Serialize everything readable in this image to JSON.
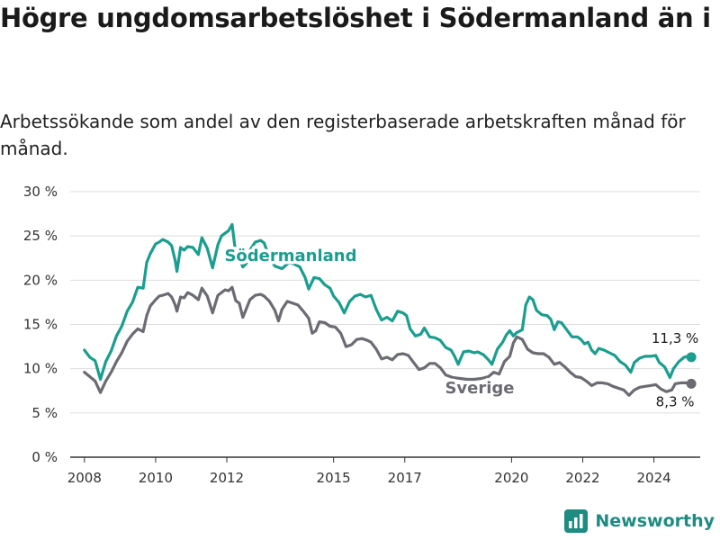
{
  "title": "Högre ungdomsarbetslöshet i Södermanland än i Sverige",
  "subtitle": "Arbetssökande som andel av den registerbaserade arbetskraften månad för månad.",
  "brand": {
    "name": "Newsworthy"
  },
  "colors": {
    "sodermanland": "#1a9e8f",
    "sverige": "#6b6b73",
    "grid": "#dddddd",
    "axis": "#333333",
    "brand": "#1e8c82"
  },
  "chart_data": {
    "type": "line",
    "title": "Högre ungdomsarbetslöshet i Södermanland än i Sverige",
    "subtitle": "Arbetssökande som andel av den registerbaserade arbetskraften månad för månad.",
    "xlabel": "",
    "ylabel": "",
    "xlim": [
      2007.6,
      2025.3
    ],
    "ylim": [
      0,
      30
    ],
    "y_ticks": [
      0,
      5,
      10,
      15,
      20,
      25,
      30
    ],
    "y_tick_labels": [
      "0 %",
      "5 %",
      "10 %",
      "15 %",
      "20 %",
      "25 %",
      "30 %"
    ],
    "x_ticks": [
      2008,
      2010,
      2012,
      2015,
      2017,
      2020,
      2022,
      2024
    ],
    "x_tick_labels": [
      "2008",
      "2010",
      "2012",
      "2015",
      "2017",
      "2020",
      "2022",
      "2024"
    ],
    "grid": true,
    "series": [
      {
        "name": "Södermanland",
        "color": "#1a9e8f",
        "end_label": "11,3 %",
        "points": [
          [
            2008.0,
            12.1
          ],
          [
            2008.15,
            11.3
          ],
          [
            2008.3,
            10.9
          ],
          [
            2008.45,
            8.8
          ],
          [
            2008.6,
            10.8
          ],
          [
            2008.75,
            12.0
          ],
          [
            2008.9,
            13.7
          ],
          [
            2009.05,
            14.8
          ],
          [
            2009.2,
            16.5
          ],
          [
            2009.35,
            17.5
          ],
          [
            2009.5,
            19.2
          ],
          [
            2009.65,
            19.1
          ],
          [
            2009.75,
            22.0
          ],
          [
            2009.85,
            23.0
          ],
          [
            2010.0,
            24.1
          ],
          [
            2010.1,
            24.3
          ],
          [
            2010.2,
            24.6
          ],
          [
            2010.35,
            24.3
          ],
          [
            2010.45,
            23.9
          ],
          [
            2010.55,
            22.2
          ],
          [
            2010.6,
            21.0
          ],
          [
            2010.7,
            23.7
          ],
          [
            2010.8,
            23.4
          ],
          [
            2010.9,
            23.8
          ],
          [
            2011.05,
            23.7
          ],
          [
            2011.2,
            22.9
          ],
          [
            2011.3,
            24.8
          ],
          [
            2011.45,
            23.6
          ],
          [
            2011.6,
            21.4
          ],
          [
            2011.75,
            24.0
          ],
          [
            2011.85,
            25.0
          ],
          [
            2011.95,
            25.3
          ],
          [
            2012.05,
            25.6
          ],
          [
            2012.15,
            26.3
          ],
          [
            2012.25,
            23.0
          ],
          [
            2012.35,
            22.6
          ],
          [
            2012.45,
            21.5
          ],
          [
            2012.55,
            21.9
          ],
          [
            2012.65,
            23.4
          ],
          [
            2012.8,
            24.3
          ],
          [
            2012.95,
            24.5
          ],
          [
            2013.05,
            24.2
          ],
          [
            2013.2,
            22.5
          ],
          [
            2013.35,
            21.6
          ],
          [
            2013.55,
            21.3
          ],
          [
            2013.75,
            22.0
          ],
          [
            2013.9,
            21.8
          ],
          [
            2014.05,
            21.5
          ],
          [
            2014.2,
            20.3
          ],
          [
            2014.3,
            19.0
          ],
          [
            2014.45,
            20.3
          ],
          [
            2014.6,
            20.2
          ],
          [
            2014.75,
            19.5
          ],
          [
            2014.9,
            19.1
          ],
          [
            2015.0,
            18.2
          ],
          [
            2015.15,
            17.5
          ],
          [
            2015.3,
            16.3
          ],
          [
            2015.45,
            17.6
          ],
          [
            2015.6,
            18.2
          ],
          [
            2015.75,
            18.4
          ],
          [
            2015.9,
            18.1
          ],
          [
            2016.05,
            18.3
          ],
          [
            2016.2,
            16.7
          ],
          [
            2016.35,
            15.5
          ],
          [
            2016.5,
            15.8
          ],
          [
            2016.65,
            15.4
          ],
          [
            2016.8,
            16.5
          ],
          [
            2016.95,
            16.3
          ],
          [
            2017.05,
            16.0
          ],
          [
            2017.15,
            14.5
          ],
          [
            2017.3,
            13.7
          ],
          [
            2017.45,
            13.9
          ],
          [
            2017.55,
            14.6
          ],
          [
            2017.7,
            13.6
          ],
          [
            2017.85,
            13.5
          ],
          [
            2018.0,
            13.2
          ],
          [
            2018.15,
            12.4
          ],
          [
            2018.3,
            12.1
          ],
          [
            2018.4,
            11.4
          ],
          [
            2018.5,
            10.5
          ],
          [
            2018.65,
            11.9
          ],
          [
            2018.8,
            12.0
          ],
          [
            2018.95,
            11.8
          ],
          [
            2019.05,
            11.9
          ],
          [
            2019.2,
            11.6
          ],
          [
            2019.35,
            11.0
          ],
          [
            2019.45,
            10.5
          ],
          [
            2019.6,
            12.2
          ],
          [
            2019.75,
            13.0
          ],
          [
            2019.85,
            13.8
          ],
          [
            2019.95,
            14.3
          ],
          [
            2020.05,
            13.7
          ],
          [
            2020.15,
            14.1
          ],
          [
            2020.3,
            14.4
          ],
          [
            2020.4,
            17.2
          ],
          [
            2020.5,
            18.1
          ],
          [
            2020.6,
            17.8
          ],
          [
            2020.7,
            16.6
          ],
          [
            2020.85,
            16.1
          ],
          [
            2021.0,
            16.0
          ],
          [
            2021.1,
            15.6
          ],
          [
            2021.2,
            14.4
          ],
          [
            2021.3,
            15.3
          ],
          [
            2021.4,
            15.2
          ],
          [
            2021.55,
            14.4
          ],
          [
            2021.7,
            13.6
          ],
          [
            2021.85,
            13.6
          ],
          [
            2021.95,
            13.3
          ],
          [
            2022.05,
            12.8
          ],
          [
            2022.15,
            13.0
          ],
          [
            2022.25,
            12.1
          ],
          [
            2022.35,
            11.7
          ],
          [
            2022.45,
            12.3
          ],
          [
            2022.6,
            12.1
          ],
          [
            2022.75,
            11.8
          ],
          [
            2022.9,
            11.5
          ],
          [
            2023.05,
            10.8
          ],
          [
            2023.2,
            10.4
          ],
          [
            2023.35,
            9.6
          ],
          [
            2023.45,
            10.7
          ],
          [
            2023.6,
            11.2
          ],
          [
            2023.75,
            11.4
          ],
          [
            2023.9,
            11.4
          ],
          [
            2024.05,
            11.5
          ],
          [
            2024.15,
            10.7
          ],
          [
            2024.3,
            10.2
          ],
          [
            2024.45,
            9.0
          ],
          [
            2024.55,
            10.0
          ],
          [
            2024.7,
            10.8
          ],
          [
            2024.85,
            11.3
          ],
          [
            2024.95,
            11.4
          ],
          [
            2025.05,
            11.3
          ]
        ]
      },
      {
        "name": "Sverige",
        "color": "#6b6b73",
        "end_label": "8,3 %",
        "points": [
          [
            2008.0,
            9.6
          ],
          [
            2008.15,
            9.1
          ],
          [
            2008.3,
            8.6
          ],
          [
            2008.45,
            7.3
          ],
          [
            2008.6,
            8.6
          ],
          [
            2008.75,
            9.6
          ],
          [
            2008.9,
            10.8
          ],
          [
            2009.05,
            11.8
          ],
          [
            2009.2,
            13.1
          ],
          [
            2009.35,
            13.9
          ],
          [
            2009.5,
            14.5
          ],
          [
            2009.65,
            14.2
          ],
          [
            2009.75,
            16.0
          ],
          [
            2009.85,
            17.1
          ],
          [
            2010.0,
            17.8
          ],
          [
            2010.1,
            18.2
          ],
          [
            2010.2,
            18.3
          ],
          [
            2010.35,
            18.5
          ],
          [
            2010.45,
            18.1
          ],
          [
            2010.55,
            17.2
          ],
          [
            2010.6,
            16.5
          ],
          [
            2010.7,
            18.1
          ],
          [
            2010.8,
            18.0
          ],
          [
            2010.9,
            18.6
          ],
          [
            2011.05,
            18.3
          ],
          [
            2011.2,
            17.8
          ],
          [
            2011.3,
            19.1
          ],
          [
            2011.45,
            18.2
          ],
          [
            2011.6,
            16.3
          ],
          [
            2011.75,
            18.3
          ],
          [
            2011.85,
            18.6
          ],
          [
            2011.95,
            18.9
          ],
          [
            2012.05,
            18.8
          ],
          [
            2012.15,
            19.2
          ],
          [
            2012.25,
            17.7
          ],
          [
            2012.35,
            17.4
          ],
          [
            2012.45,
            15.8
          ],
          [
            2012.55,
            16.8
          ],
          [
            2012.65,
            17.8
          ],
          [
            2012.8,
            18.3
          ],
          [
            2012.95,
            18.4
          ],
          [
            2013.05,
            18.2
          ],
          [
            2013.2,
            17.6
          ],
          [
            2013.35,
            16.6
          ],
          [
            2013.45,
            15.4
          ],
          [
            2013.55,
            16.7
          ],
          [
            2013.7,
            17.6
          ],
          [
            2013.85,
            17.4
          ],
          [
            2014.0,
            17.2
          ],
          [
            2014.15,
            16.5
          ],
          [
            2014.3,
            15.7
          ],
          [
            2014.4,
            14.0
          ],
          [
            2014.5,
            14.3
          ],
          [
            2014.6,
            15.3
          ],
          [
            2014.75,
            15.2
          ],
          [
            2014.9,
            14.8
          ],
          [
            2015.05,
            14.7
          ],
          [
            2015.2,
            14.0
          ],
          [
            2015.35,
            12.5
          ],
          [
            2015.5,
            12.7
          ],
          [
            2015.65,
            13.3
          ],
          [
            2015.8,
            13.4
          ],
          [
            2015.95,
            13.2
          ],
          [
            2016.05,
            13.0
          ],
          [
            2016.2,
            12.2
          ],
          [
            2016.35,
            11.1
          ],
          [
            2016.5,
            11.3
          ],
          [
            2016.65,
            11.0
          ],
          [
            2016.8,
            11.6
          ],
          [
            2016.95,
            11.7
          ],
          [
            2017.1,
            11.5
          ],
          [
            2017.25,
            10.7
          ],
          [
            2017.4,
            9.9
          ],
          [
            2017.55,
            10.1
          ],
          [
            2017.7,
            10.6
          ],
          [
            2017.85,
            10.6
          ],
          [
            2018.0,
            10.1
          ],
          [
            2018.15,
            9.3
          ],
          [
            2018.35,
            9.0
          ],
          [
            2018.55,
            8.9
          ],
          [
            2018.75,
            8.8
          ],
          [
            2018.95,
            8.8
          ],
          [
            2019.15,
            8.9
          ],
          [
            2019.35,
            9.1
          ],
          [
            2019.5,
            9.6
          ],
          [
            2019.65,
            9.4
          ],
          [
            2019.8,
            10.8
          ],
          [
            2019.95,
            11.4
          ],
          [
            2020.05,
            12.9
          ],
          [
            2020.15,
            13.6
          ],
          [
            2020.3,
            13.3
          ],
          [
            2020.45,
            12.2
          ],
          [
            2020.6,
            11.8
          ],
          [
            2020.75,
            11.7
          ],
          [
            2020.9,
            11.7
          ],
          [
            2021.05,
            11.3
          ],
          [
            2021.2,
            10.5
          ],
          [
            2021.35,
            10.7
          ],
          [
            2021.5,
            10.2
          ],
          [
            2021.65,
            9.6
          ],
          [
            2021.8,
            9.1
          ],
          [
            2021.95,
            9.0
          ],
          [
            2022.1,
            8.6
          ],
          [
            2022.25,
            8.1
          ],
          [
            2022.4,
            8.4
          ],
          [
            2022.55,
            8.4
          ],
          [
            2022.7,
            8.3
          ],
          [
            2022.85,
            8.0
          ],
          [
            2023.0,
            7.8
          ],
          [
            2023.15,
            7.6
          ],
          [
            2023.3,
            7.0
          ],
          [
            2023.45,
            7.6
          ],
          [
            2023.6,
            7.9
          ],
          [
            2023.75,
            8.0
          ],
          [
            2023.9,
            8.1
          ],
          [
            2024.05,
            8.2
          ],
          [
            2024.2,
            7.7
          ],
          [
            2024.35,
            7.4
          ],
          [
            2024.5,
            7.6
          ],
          [
            2024.6,
            8.3
          ],
          [
            2024.75,
            8.4
          ],
          [
            2024.9,
            8.4
          ],
          [
            2025.05,
            8.3
          ]
        ]
      }
    ]
  }
}
